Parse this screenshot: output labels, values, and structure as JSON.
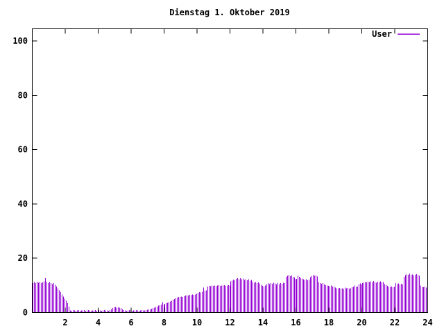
{
  "chart_data": {
    "type": "bar",
    "style": "impulses",
    "title": "Dienstag 1. Oktober 2019",
    "xlabel": "",
    "ylabel": "",
    "x_unit": "hour_of_day",
    "sample_interval_hours": 0.0833,
    "xlim": [
      0,
      24
    ],
    "ylim": [
      0,
      104
    ],
    "x_ticks": [
      2,
      4,
      6,
      8,
      10,
      12,
      14,
      16,
      18,
      20,
      22,
      24
    ],
    "y_ticks": [
      0,
      20,
      40,
      60,
      80,
      100
    ],
    "grid": false,
    "legend_position": "top-right",
    "series": [
      {
        "name": "User",
        "color": "#9400d3",
        "values": [
          10.8,
          11.2,
          10.9,
          11.4,
          11.0,
          11.3,
          10.8,
          11.1,
          11.5,
          12.6,
          11.2,
          10.9,
          11.3,
          10.8,
          10.5,
          10.9,
          10.2,
          9.6,
          8.9,
          8.2,
          7.5,
          6.7,
          5.9,
          5.1,
          4.3,
          3.4,
          2.2,
          0.8,
          0.7,
          0.9,
          0.8,
          0.7,
          0.8,
          0.9,
          0.7,
          0.8,
          0.8,
          0.9,
          0.7,
          0.8,
          0.9,
          0.8,
          0.7,
          0.8,
          0.8,
          0.9,
          0.7,
          0.8,
          0.9,
          0.8,
          0.7,
          0.8,
          0.9,
          0.8,
          0.8,
          0.7,
          0.9,
          1.2,
          1.6,
          1.9,
          2.0,
          1.8,
          1.9,
          1.8,
          1.6,
          1.2,
          0.9,
          0.8,
          0.7,
          0.8,
          0.9,
          0.8,
          0.7,
          0.8,
          0.8,
          0.9,
          0.8,
          0.7,
          0.8,
          0.9,
          0.8,
          0.8,
          0.9,
          1.0,
          1.1,
          1.2,
          1.4,
          1.6,
          1.8,
          2.0,
          2.2,
          2.5,
          2.7,
          3.0,
          3.8,
          2.9,
          3.2,
          3.4,
          3.6,
          3.8,
          4.1,
          4.4,
          4.7,
          5.0,
          5.3,
          5.5,
          5.8,
          5.7,
          5.9,
          5.8,
          6.0,
          6.2,
          6.4,
          6.3,
          6.5,
          6.4,
          6.6,
          6.5,
          6.7,
          6.9,
          7.3,
          7.5,
          7.4,
          7.6,
          9.2,
          8.0,
          8.2,
          9.6,
          9.8,
          9.7,
          9.9,
          9.8,
          10.0,
          9.7,
          9.9,
          10.1,
          9.8,
          10.0,
          9.9,
          10.1,
          9.8,
          10.0,
          10.1,
          9.9,
          11.5,
          11.8,
          12.1,
          11.9,
          12.4,
          12.7,
          12.3,
          12.6,
          12.2,
          12.5,
          12.0,
          12.3,
          11.9,
          12.2,
          11.8,
          12.0,
          11.3,
          11.0,
          11.2,
          10.8,
          11.1,
          10.7,
          10.2,
          9.8,
          9.6,
          10.0,
          10.4,
          10.8,
          10.5,
          10.9,
          10.6,
          11.0,
          10.7,
          10.4,
          10.8,
          10.5,
          10.9,
          10.6,
          11.0,
          10.8,
          13.2,
          13.6,
          13.8,
          13.4,
          13.7,
          13.2,
          12.9,
          12.3,
          12.4,
          13.6,
          13.2,
          12.8,
          12.5,
          12.2,
          12.0,
          12.3,
          11.9,
          12.1,
          13.0,
          13.4,
          13.8,
          13.5,
          13.7,
          13.3,
          11.3,
          10.9,
          10.6,
          10.8,
          10.4,
          10.1,
          9.9,
          9.8,
          9.7,
          9.9,
          9.6,
          9.4,
          9.2,
          9.0,
          8.9,
          9.1,
          8.8,
          9.0,
          8.7,
          9.2,
          8.9,
          9.1,
          8.8,
          9.0,
          9.3,
          9.5,
          9.9,
          9.4,
          9.6,
          10.5,
          10.7,
          10.4,
          10.8,
          11.0,
          11.3,
          11.1,
          11.4,
          11.2,
          11.5,
          11.1,
          11.6,
          11.3,
          11.0,
          11.4,
          11.2,
          11.5,
          11.1,
          11.3,
          10.5,
          10.2,
          9.8,
          9.5,
          9.4,
          9.6,
          9.3,
          9.5,
          10.8,
          10.5,
          10.7,
          10.4,
          10.6,
          10.3,
          13.2,
          13.8,
          14.1,
          13.9,
          14.3,
          13.8,
          14.0,
          13.7,
          13.9,
          14.2,
          13.8,
          13.5,
          9.9,
          9.5,
          9.3,
          9.6,
          9.2,
          10.0
        ]
      }
    ]
  },
  "colors": {
    "bar": "#9400d3",
    "axis": "#000000",
    "background": "#ffffff",
    "text": "#000000"
  }
}
